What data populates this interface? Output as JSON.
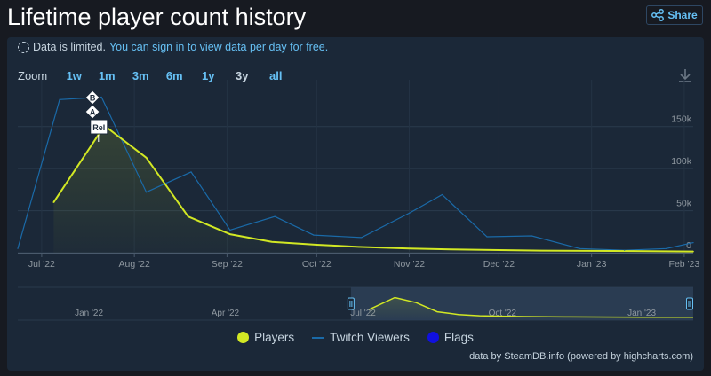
{
  "header": {
    "title": "Lifetime player count history",
    "share_label": "Share"
  },
  "notice": {
    "text": "Data is limited.",
    "link": "You can sign in to view data per day for free."
  },
  "zoom": {
    "label": "Zoom",
    "options": [
      "1w",
      "1m",
      "3m",
      "6m",
      "1y",
      "3y",
      "all"
    ],
    "active": "3y"
  },
  "chart_data": {
    "type": "line",
    "x_axis": {
      "ticks": [
        "Jul '22",
        "Aug '22",
        "Sep '22",
        "Oct '22",
        "Nov '22",
        "Dec '22",
        "Jan '23",
        "Feb '23"
      ],
      "tick_dates": [
        "2022-07-01",
        "2022-08-01",
        "2022-09-01",
        "2022-10-01",
        "2022-11-01",
        "2022-12-01",
        "2023-01-01",
        "2023-02-01"
      ],
      "range": [
        "2022-06-23",
        "2023-02-04"
      ]
    },
    "y_axis": {
      "ticks": [
        "0",
        "50k",
        "100k",
        "150k"
      ],
      "range": [
        0,
        195000
      ]
    },
    "grid": true,
    "legend_position": "bottom",
    "series": [
      {
        "name": "Players",
        "color": "#d2e824",
        "points": [
          [
            "2022-07-05",
            60000
          ],
          [
            "2022-07-22",
            151000
          ],
          [
            "2022-08-05",
            113000
          ],
          [
            "2022-08-19",
            43000
          ],
          [
            "2022-09-02",
            22000
          ],
          [
            "2022-09-16",
            13000
          ],
          [
            "2022-10-01",
            9500
          ],
          [
            "2022-10-15",
            7000
          ],
          [
            "2022-11-01",
            5000
          ],
          [
            "2022-11-15",
            4000
          ],
          [
            "2022-12-01",
            3200
          ],
          [
            "2022-12-15",
            2500
          ],
          [
            "2023-01-01",
            2200
          ],
          [
            "2023-01-15",
            2000
          ],
          [
            "2023-02-04",
            1500
          ]
        ]
      },
      {
        "name": "Twitch Viewers",
        "color": "#1a6aa8",
        "points": [
          [
            "2022-06-23",
            5000
          ],
          [
            "2022-07-07",
            182000
          ],
          [
            "2022-07-21",
            185000
          ],
          [
            "2022-08-05",
            72000
          ],
          [
            "2022-08-20",
            96000
          ],
          [
            "2022-09-02",
            27000
          ],
          [
            "2022-09-17",
            43000
          ],
          [
            "2022-09-30",
            21000
          ],
          [
            "2022-10-16",
            18000
          ],
          [
            "2022-11-01",
            47000
          ],
          [
            "2022-11-12",
            69000
          ],
          [
            "2022-11-27",
            19000
          ],
          [
            "2022-12-12",
            20000
          ],
          [
            "2022-12-28",
            5000
          ],
          [
            "2023-01-12",
            3000
          ],
          [
            "2023-01-26",
            5000
          ],
          [
            "2023-02-04",
            12000
          ]
        ]
      }
    ],
    "flags": [
      {
        "label": "B",
        "date": "2022-07-18"
      },
      {
        "label": "A",
        "date": "2022-07-18"
      },
      {
        "label": "Rel",
        "date": "2022-07-20"
      }
    ],
    "navigator": {
      "ticks": [
        "Jan '22",
        "Apr '22",
        "Jul '22",
        "Oct '22",
        "Jan '23"
      ],
      "tick_dates": [
        "2022-01-01",
        "2022-04-01",
        "2022-07-01",
        "2022-10-01",
        "2023-01-01"
      ],
      "range": [
        "2021-11-15",
        "2023-02-04"
      ],
      "selected_range": [
        "2022-06-23",
        "2023-02-04"
      ]
    }
  },
  "legend": {
    "players": "Players",
    "twitch": "Twitch Viewers",
    "flags": "Flags",
    "colors": {
      "players": "#d2e824",
      "twitch": "#1a6aa8",
      "flags": "#1010e0"
    }
  },
  "credits": "data by SteamDB.info (powered by highcharts.com)"
}
